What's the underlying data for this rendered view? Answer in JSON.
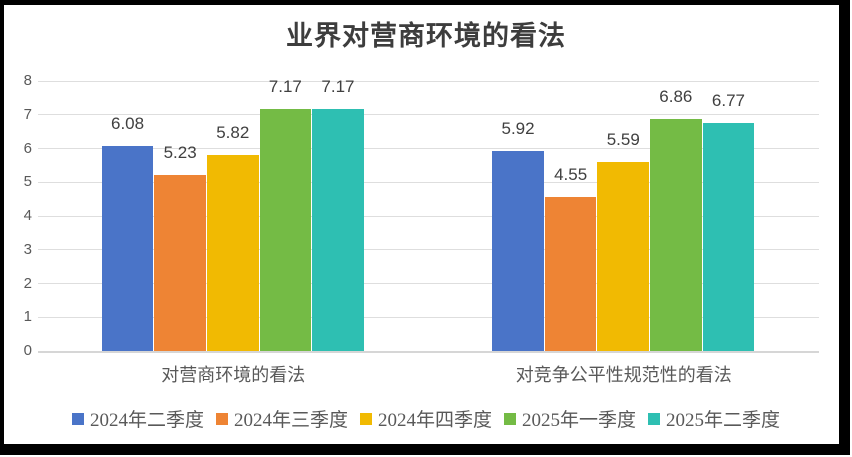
{
  "chart_data": {
    "type": "bar",
    "title": "业界对营商环境的看法",
    "categories": [
      "对营商环境的看法",
      "对竞争公平性规范性的看法"
    ],
    "series": [
      {
        "name": "2024年二季度",
        "color": "#4a74c8",
        "values": [
          6.08,
          5.92
        ]
      },
      {
        "name": "2024年三季度",
        "color": "#ee8434",
        "values": [
          5.23,
          4.55
        ]
      },
      {
        "name": "2024年四季度",
        "color": "#f1ba02",
        "values": [
          5.82,
          5.59
        ]
      },
      {
        "name": "2025年一季度",
        "color": "#74bb45",
        "values": [
          7.17,
          6.86
        ]
      },
      {
        "name": "2025年二季度",
        "color": "#2ebfb2",
        "values": [
          7.17,
          6.77
        ]
      }
    ],
    "data_labels": [
      "6.08",
      "5.23",
      "5.82",
      "7.17",
      "7.17",
      "5.92",
      "4.55",
      "5.59",
      "6.86",
      "6.77"
    ],
    "ylim": [
      0,
      8
    ],
    "yticks": [
      0,
      1,
      2,
      3,
      4,
      5,
      6,
      7,
      8
    ],
    "grid": "horizontal",
    "legend_position": "bottom"
  }
}
